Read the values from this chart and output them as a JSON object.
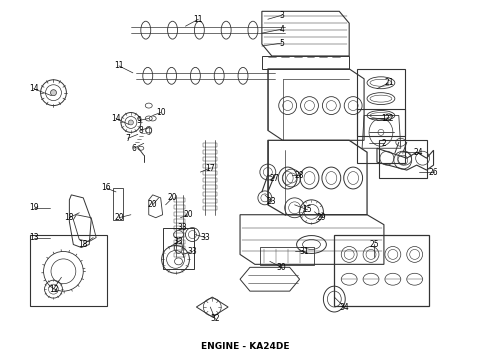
{
  "title": "ENGINE - KA24DE",
  "title_fontsize": 6.5,
  "background_color": "#ffffff",
  "line_color": "#333333",
  "text_color": "#000000",
  "fig_width": 4.9,
  "fig_height": 3.6,
  "dpi": 100,
  "labels": [
    [
      "1",
      385,
      118,
      370,
      118
    ],
    [
      "2",
      385,
      143,
      370,
      143
    ],
    [
      "3",
      282,
      14,
      268,
      18
    ],
    [
      "4",
      282,
      28,
      262,
      32
    ],
    [
      "5",
      282,
      42,
      262,
      45
    ],
    [
      "6",
      133,
      148,
      143,
      143
    ],
    [
      "7",
      127,
      138,
      137,
      134
    ],
    [
      "8",
      140,
      130,
      148,
      127
    ],
    [
      "9",
      138,
      120,
      148,
      118
    ],
    [
      "10",
      160,
      112,
      152,
      115
    ],
    [
      "11",
      198,
      18,
      185,
      25
    ],
    [
      "11",
      118,
      65,
      132,
      72
    ],
    [
      "12",
      52,
      290,
      60,
      278
    ],
    [
      "13",
      32,
      238,
      48,
      238
    ],
    [
      "14",
      32,
      88,
      50,
      95
    ],
    [
      "14",
      115,
      118,
      128,
      124
    ],
    [
      "15",
      308,
      210,
      295,
      205
    ],
    [
      "16",
      105,
      188,
      115,
      192
    ],
    [
      "17",
      210,
      168,
      200,
      172
    ],
    [
      "18",
      68,
      218,
      78,
      213
    ],
    [
      "18",
      82,
      245,
      92,
      238
    ],
    [
      "19",
      32,
      208,
      48,
      208
    ],
    [
      "20",
      118,
      218,
      130,
      215
    ],
    [
      "20",
      152,
      205,
      158,
      198
    ],
    [
      "20",
      172,
      198,
      165,
      205
    ],
    [
      "20",
      188,
      215,
      180,
      218
    ],
    [
      "21",
      390,
      82,
      378,
      88
    ],
    [
      "22",
      390,
      118,
      378,
      120
    ],
    [
      "23",
      272,
      202,
      265,
      195
    ],
    [
      "24",
      420,
      152,
      405,
      152
    ],
    [
      "25",
      375,
      245,
      375,
      258
    ],
    [
      "26",
      435,
      172,
      420,
      172
    ],
    [
      "27",
      275,
      178,
      268,
      175
    ],
    [
      "28",
      300,
      175,
      292,
      175
    ],
    [
      "29",
      322,
      218,
      315,
      212
    ],
    [
      "30",
      282,
      268,
      270,
      262
    ],
    [
      "31",
      305,
      252,
      295,
      252
    ],
    [
      "32",
      215,
      320,
      210,
      308
    ],
    [
      "33",
      182,
      228,
      172,
      228
    ],
    [
      "33",
      178,
      242,
      168,
      248
    ],
    [
      "33",
      192,
      252,
      182,
      255
    ],
    [
      "33",
      205,
      238,
      195,
      235
    ],
    [
      "34",
      345,
      308,
      335,
      298
    ]
  ]
}
